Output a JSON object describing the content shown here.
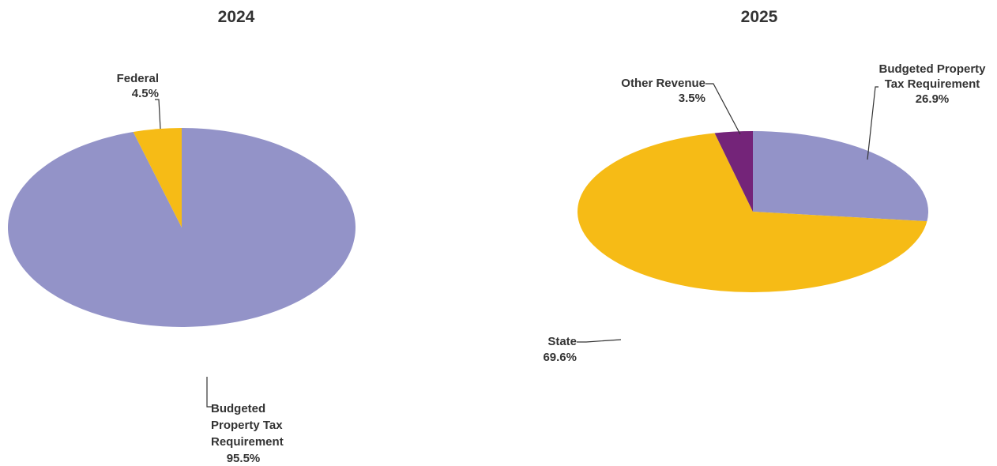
{
  "chart_data": [
    {
      "type": "pie",
      "title": "2024",
      "slices": [
        {
          "label": [
            "Budgeted",
            "Property Tax",
            "Requirement"
          ],
          "value": 95.5,
          "value_label": "95.5%",
          "color": "#9393c8",
          "side_color": "#6e6eb0",
          "dark_color": "#353562"
        },
        {
          "label": [
            "Federal"
          ],
          "value": 4.5,
          "value_label": "4.5%",
          "color": "#f6bb16",
          "side_color": "#d19e15",
          "dark_color": "#6b4e10"
        }
      ]
    },
    {
      "type": "pie",
      "title": "2025",
      "slices": [
        {
          "label": [
            "Budgeted Property",
            "Tax Requirement"
          ],
          "value": 26.9,
          "value_label": "26.9%",
          "color": "#9393c8",
          "side_color": "#6e6eb0",
          "dark_color": "#353562"
        },
        {
          "label": [
            "State"
          ],
          "value": 69.6,
          "value_label": "69.6%",
          "color": "#f6bb16",
          "side_color": "#d19e15",
          "dark_color": "#5f4718"
        },
        {
          "label": [
            "Other Revenue"
          ],
          "value": 3.5,
          "value_label": "3.5%",
          "color": "#742479",
          "side_color": "#5a1a5e",
          "dark_color": "#3a103c"
        }
      ]
    }
  ]
}
